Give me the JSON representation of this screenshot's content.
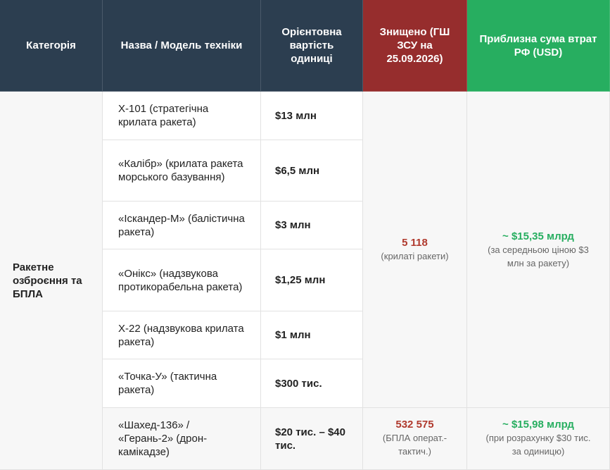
{
  "table": {
    "header": [
      "Категорія",
      "Назва / Модель техніки",
      "Орієнтовна вартість одиниці",
      "Знищено (ГШ ЗСУ на 25.09.2026)",
      "Приблизна сума втрат РФ (USD)"
    ],
    "category": "Ракетне озброєння та БПЛА",
    "rows": [
      {
        "name": "Х-101 (стратегічна крилата ракета)",
        "cost": "$13 млн"
      },
      {
        "name": "«Калібр» (крилата ракета морського базування)",
        "cost": "$6,5 млн"
      },
      {
        "name": "«Іскандер-М» (балістична ракета)",
        "cost": "$3 млн"
      },
      {
        "name": "«Онікс» (надзвукова протикорабельна ракета)",
        "cost": "$1,25 млн"
      },
      {
        "name": "Х-22 (надзвукова крилата ракета)",
        "cost": "$1 млн"
      },
      {
        "name": "«Точка-У» (тактична ракета)",
        "cost": "$300 тис."
      },
      {
        "name": "«Шахед-136» / «Герань-2» (дрон-камікадзе)",
        "cost": "$20 тис. – $40 тис."
      }
    ],
    "groups": [
      {
        "destroyed": "5 118",
        "destroyed_note": "(крилаті ракети)",
        "sum": "~ $15,35 млрд",
        "sum_note": "(за середньою ціною $3 млн за ракету)"
      },
      {
        "destroyed": "532 575",
        "destroyed_note": "(БПЛА операт.-тактич.)",
        "sum": "~ $15,98 млрд",
        "sum_note": "(при розрахунку $30 тис. за одиницю)"
      }
    ]
  }
}
